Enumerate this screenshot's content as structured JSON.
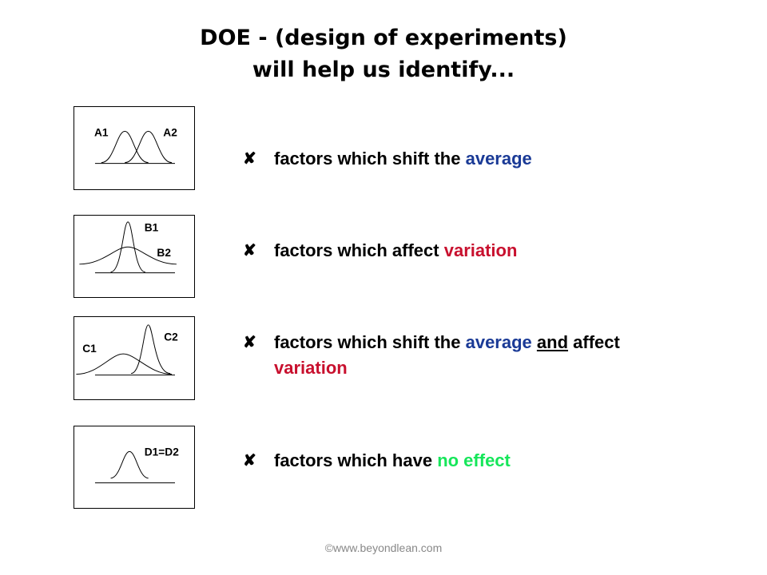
{
  "title": {
    "line1": "DOE - (design of experiments)",
    "line2": "will help us identify..."
  },
  "bullet_symbol": "✘",
  "boxes": [
    {
      "label_a": "A1",
      "label_b": "A2"
    },
    {
      "label_a": "B1",
      "label_b": "B2"
    },
    {
      "label_a": "C1",
      "label_b": "C2"
    },
    {
      "label_a": "D1=D2"
    }
  ],
  "bullets": [
    {
      "prefix": "factors which shift the ",
      "highlight": "average"
    },
    {
      "prefix": "factors which affect ",
      "highlight": "variation"
    },
    {
      "prefix": "factors which shift the ",
      "highlight1": "average",
      "mid_underlined": "and",
      "suffix": " affect",
      "highlight2": "variation"
    },
    {
      "prefix": "factors which have ",
      "highlight": "no effect"
    }
  ],
  "colors": {
    "average": "#1a3a96",
    "variation": "#c8102e",
    "no_effect": "#16e65a"
  },
  "footer": "©www.beyondlean.com"
}
